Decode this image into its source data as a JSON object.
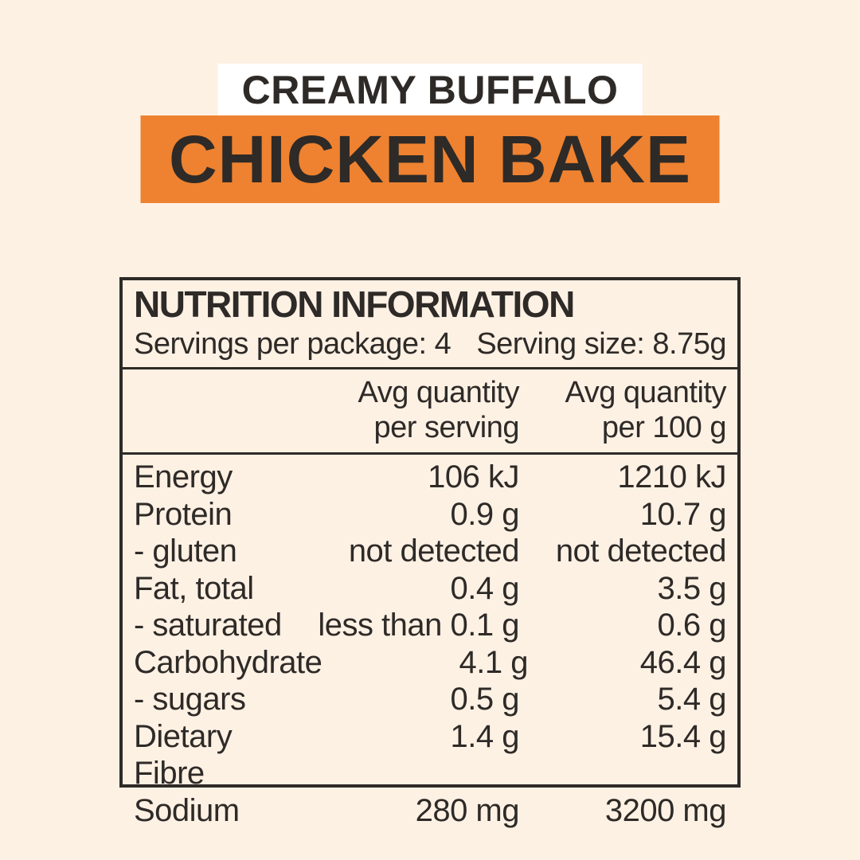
{
  "colors": {
    "background": "#fdf1e4",
    "ink": "#2e2a27",
    "accent_orange": "#ee8230",
    "band_white": "#ffffff"
  },
  "title": {
    "line1": "CREAMY BUFFALO",
    "line2": "CHICKEN BAKE"
  },
  "nutrition_table": {
    "heading": "NUTRITION INFORMATION",
    "servings_line": "Servings per package: 4",
    "serving_size_line": "Serving size: 8.75g",
    "column_headers": {
      "per_serving": {
        "line1": "Avg quantity",
        "line2": "per serving"
      },
      "per_100g": {
        "line1": "Avg quantity",
        "line2": "per 100 g"
      }
    },
    "rows": [
      {
        "nutrient": "Energy",
        "per_serving": "106 kJ",
        "per_100g": "1210 kJ"
      },
      {
        "nutrient": "Protein",
        "per_serving": "0.9 g",
        "per_100g": "10.7 g"
      },
      {
        "nutrient": "- gluten",
        "per_serving": "not detected",
        "per_100g": "not detected"
      },
      {
        "nutrient": "Fat, total",
        "per_serving": "0.4 g",
        "per_100g": "3.5 g"
      },
      {
        "nutrient": "- saturated",
        "per_serving": "less than 0.1 g",
        "per_100g": "0.6 g"
      },
      {
        "nutrient": "Carbohydrate",
        "per_serving": "4.1 g",
        "per_100g": "46.4 g"
      },
      {
        "nutrient": "- sugars",
        "per_serving": "0.5 g",
        "per_100g": "5.4 g"
      },
      {
        "nutrient": "Dietary Fibre",
        "per_serving": "1.4 g",
        "per_100g": "15.4 g"
      },
      {
        "nutrient": "Sodium",
        "per_serving": "280 mg",
        "per_100g": "3200 mg"
      }
    ]
  }
}
